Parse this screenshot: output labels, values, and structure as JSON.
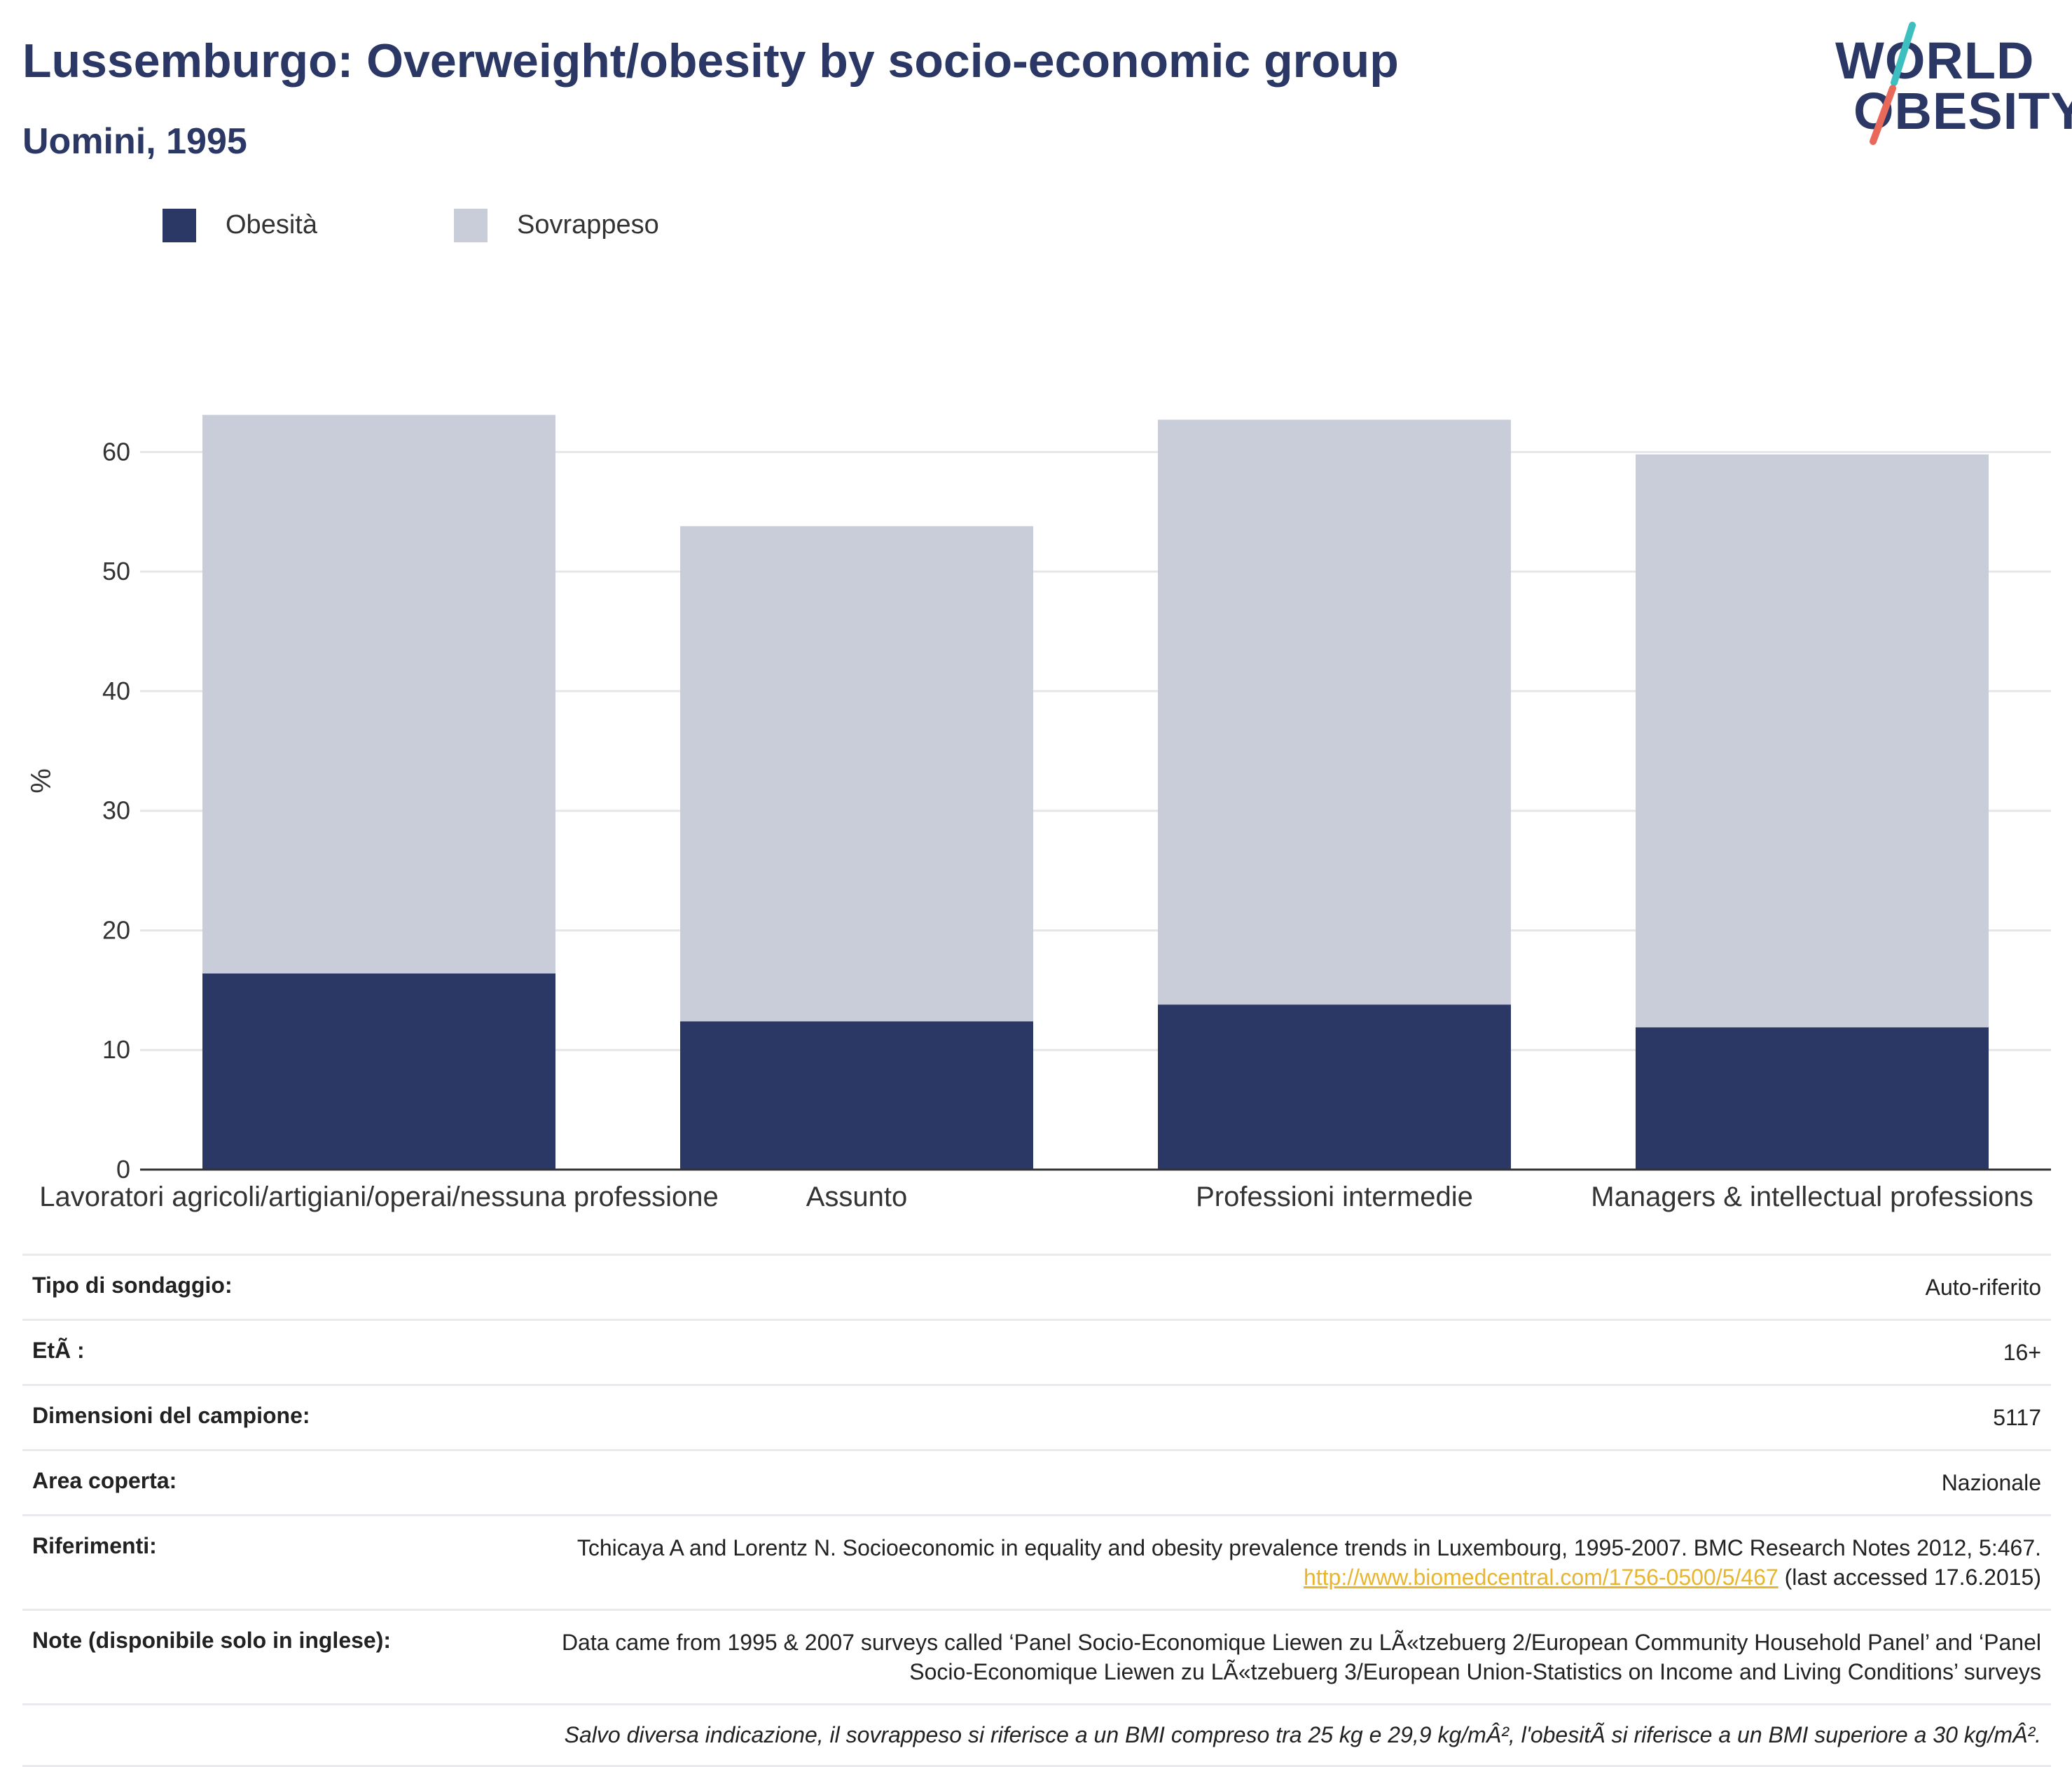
{
  "header": {
    "title": "Lussemburgo: Overweight/obesity by socio-economic group",
    "subtitle": "Uomini, 1995"
  },
  "logo": {
    "line1": "WORLD",
    "line2": "OBESITY",
    "accent_teal": "#3dbfbf",
    "accent_coral": "#e8685a"
  },
  "colors": {
    "obesity": "#2b3765",
    "overweight": "#c9ccd9",
    "grid": "#e6e6ea",
    "axis": "#333333"
  },
  "legend": {
    "obesity_label": "Obesità",
    "overweight_label": "Sovrappeso"
  },
  "chart_data": {
    "type": "bar",
    "stacked": true,
    "categories": [
      "Lavoratori agricoli/artigiani/operai/nessuna professione",
      "Assunto",
      "Professioni intermedie",
      "Managers & intellectual professions"
    ],
    "series": [
      {
        "name": "Obesità",
        "values": [
          16.4,
          12.4,
          13.8,
          11.9
        ]
      },
      {
        "name": "Sovrappeso",
        "values": [
          46.7,
          41.4,
          48.9,
          47.9
        ]
      }
    ],
    "ylabel": "%",
    "ylim": [
      0,
      65
    ],
    "yticks": [
      0,
      10,
      20,
      30,
      40,
      50,
      60
    ],
    "grid": true,
    "legend_position": "top-left"
  },
  "info": {
    "rows": [
      {
        "key": "Tipo di sondaggio:",
        "value": "Auto-riferito"
      },
      {
        "key": "EtÃ :",
        "value": "16+"
      },
      {
        "key": "Dimensioni del campione:",
        "value": "5117"
      },
      {
        "key": "Area coperta:",
        "value": "Nazionale"
      }
    ],
    "references": {
      "key": "Riferimenti:",
      "text_before": "Tchicaya A and Lorentz N. Socioeconomic in equality and obesity prevalence trends in Luxembourg, 1995-2007. BMC Research Notes 2012, 5:467.",
      "link": "http://www.biomedcentral.com/1756-0500/5/467",
      "text_after": "(last accessed 17.6.2015)"
    },
    "notes": {
      "key": "Note (disponibile solo in inglese):",
      "value": "Data came from 1995 & 2007 surveys called ‘Panel Socio-Economique Liewen zu LÃ«tzebuerg 2/European Community Household Panel’ and ‘Panel Socio-Economique Liewen zu LÃ«tzebuerg 3/European Union-Statistics on Income and Living Conditions’ surveys"
    },
    "footnote": "Salvo diversa indicazione, il sovrappeso si riferisce a un BMI compreso tra 25 kg e 29,9 kg/mÂ², l'obesitÃ  si riferisce a un BMI superiore a 30 kg/mÂ²."
  }
}
